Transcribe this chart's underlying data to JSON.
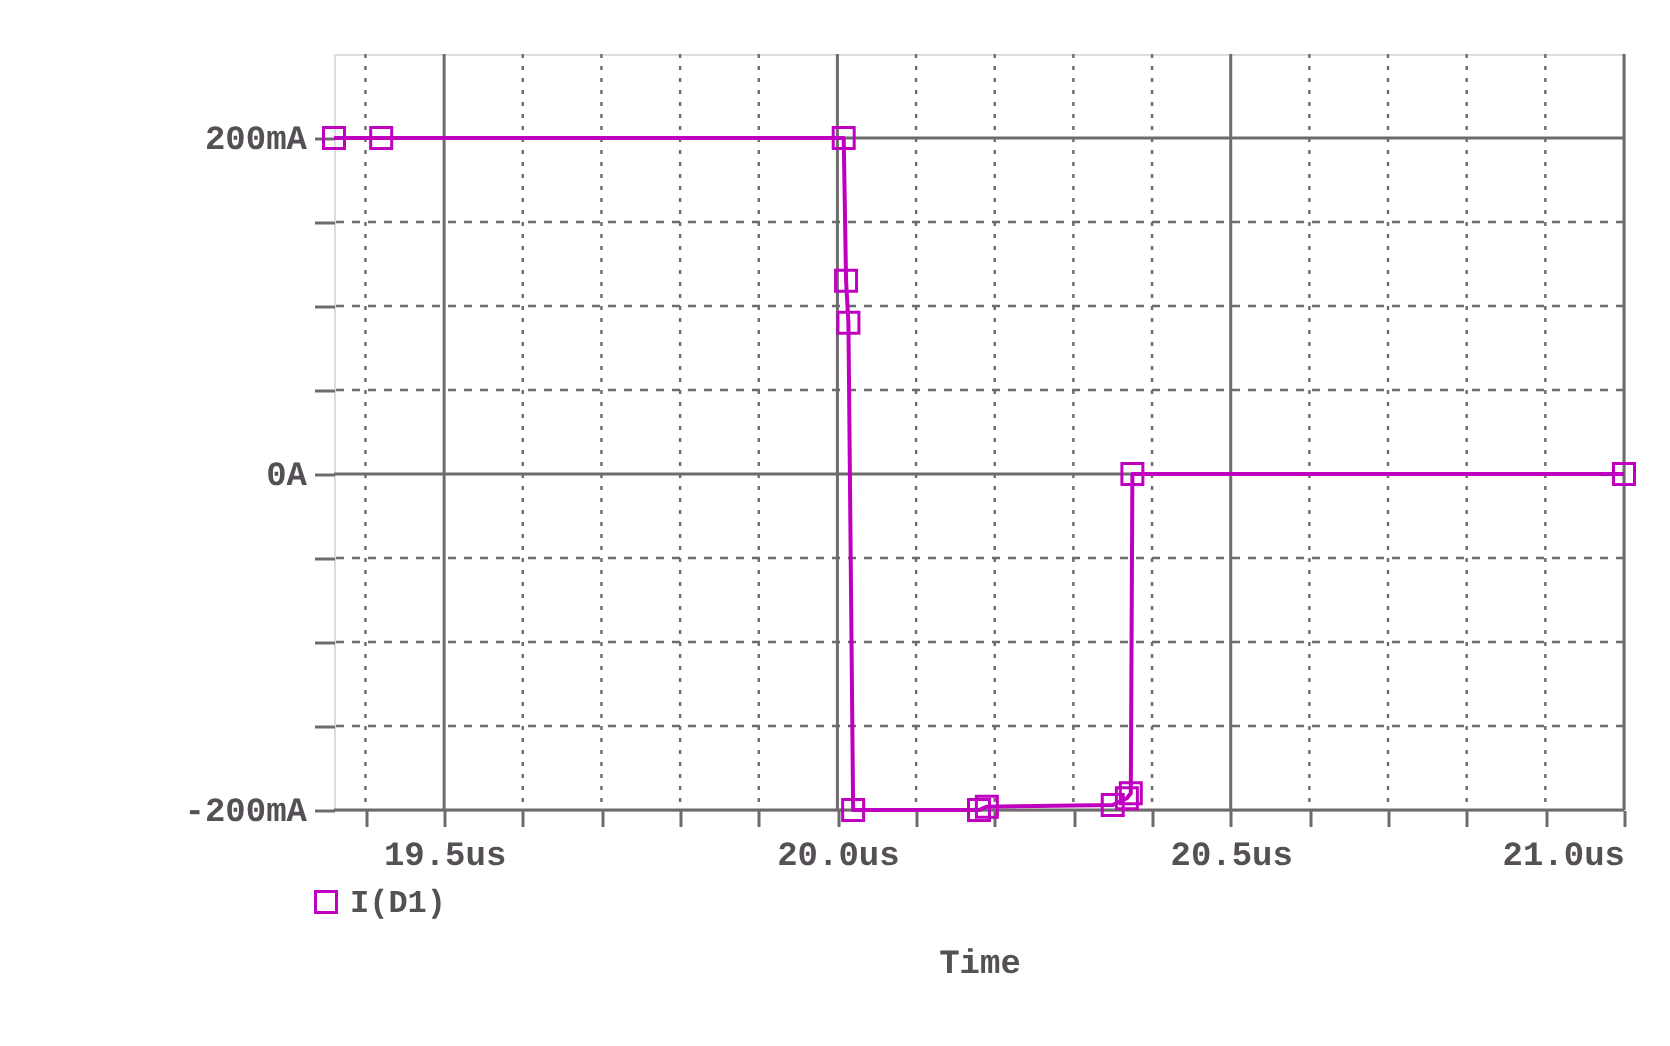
{
  "chart_data": {
    "type": "line",
    "xlabel": "Time",
    "x": [
      19.36,
      19.42,
      20.008,
      20.011,
      20.014,
      20.02,
      20.18,
      20.19,
      20.35,
      20.368,
      20.373,
      20.375,
      21.0
    ],
    "series": [
      {
        "name": "I(D1)",
        "color": "#c000c0",
        "values": [
          200,
          200,
          200,
          115,
          90,
          -200,
          -200,
          -198,
          -197,
          -193,
          -190,
          0,
          0
        ]
      }
    ],
    "xlim": [
      19.36,
      21.0
    ],
    "ylim": [
      -200,
      250
    ],
    "xticks": [
      {
        "value": 19.4,
        "label": null
      },
      {
        "value": 19.5,
        "label": "19.5us"
      },
      {
        "value": 19.6,
        "label": null
      },
      {
        "value": 19.7,
        "label": null
      },
      {
        "value": 19.8,
        "label": null
      },
      {
        "value": 19.9,
        "label": null
      },
      {
        "value": 20.0,
        "label": "20.0us"
      },
      {
        "value": 20.1,
        "label": null
      },
      {
        "value": 20.2,
        "label": null
      },
      {
        "value": 20.3,
        "label": null
      },
      {
        "value": 20.4,
        "label": null
      },
      {
        "value": 20.5,
        "label": "20.5us"
      },
      {
        "value": 20.6,
        "label": null
      },
      {
        "value": 20.7,
        "label": null
      },
      {
        "value": 20.8,
        "label": null
      },
      {
        "value": 20.9,
        "label": null
      },
      {
        "value": 21.0,
        "label": "21.0us"
      }
    ],
    "yticks": [
      {
        "value": -200,
        "label": "-200mA"
      },
      {
        "value": -150,
        "label": null
      },
      {
        "value": -100,
        "label": null
      },
      {
        "value": -50,
        "label": null
      },
      {
        "value": 0,
        "label": "0A"
      },
      {
        "value": 50,
        "label": null
      },
      {
        "value": 100,
        "label": null
      },
      {
        "value": 150,
        "label": null
      },
      {
        "value": 200,
        "label": "200mA"
      }
    ],
    "grid": true,
    "legend": "bottom left",
    "marker": "square",
    "line_style": "solid"
  }
}
